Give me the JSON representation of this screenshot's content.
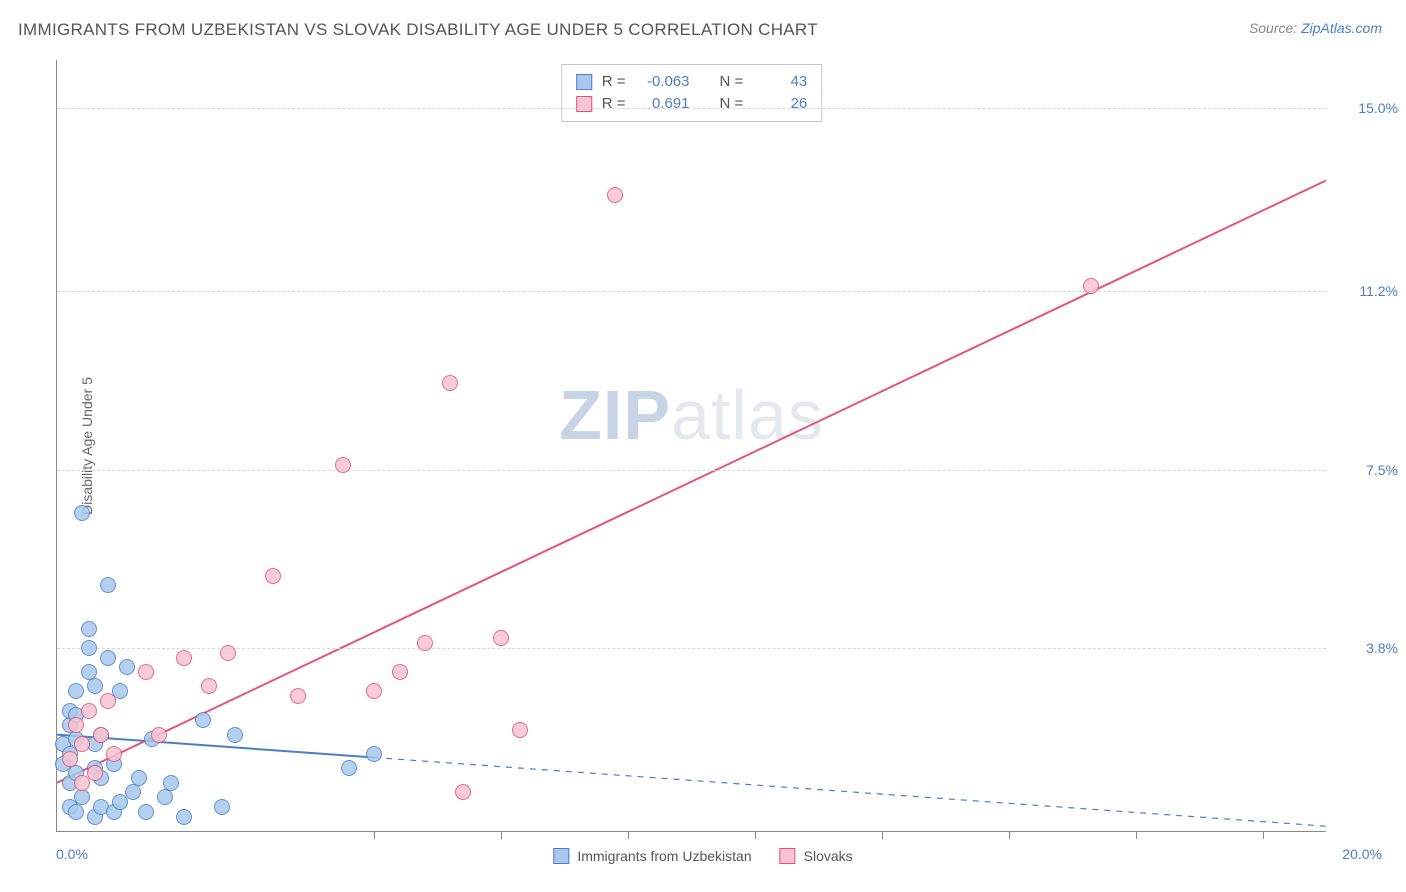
{
  "title": "IMMIGRANTS FROM UZBEKISTAN VS SLOVAK DISABILITY AGE UNDER 5 CORRELATION CHART",
  "source_prefix": "Source: ",
  "source_link": "ZipAtlas.com",
  "y_axis_label": "Disability Age Under 5",
  "x_origin": "0.0%",
  "x_max": "20.0%",
  "watermark_a": "ZIP",
  "watermark_b": "atlas",
  "chart": {
    "type": "scatter",
    "background_color": "#ffffff",
    "grid_color": "#d8d8d8",
    "axis_color": "#888888",
    "xlim": [
      0,
      20
    ],
    "ylim": [
      0,
      16
    ],
    "y_ticks": [
      {
        "v": 3.8,
        "label": "3.8%"
      },
      {
        "v": 7.5,
        "label": "7.5%"
      },
      {
        "v": 11.2,
        "label": "11.2%"
      },
      {
        "v": 15.0,
        "label": "15.0%"
      }
    ],
    "x_tick_values": [
      5,
      7,
      9,
      11,
      13,
      15,
      17,
      19
    ],
    "point_radius": 8,
    "series": [
      {
        "name": "Immigrants from Uzbekistan",
        "fill": "#a9c8ec",
        "stroke": "#4a7fc8",
        "R": "-0.063",
        "N": "43",
        "trend": {
          "x1": 0,
          "y1": 2.0,
          "x2": 20,
          "y2": 0.1,
          "solid_until_x": 5.0,
          "color": "#4a7fc8",
          "width": 2
        },
        "points": [
          [
            0.1,
            1.4
          ],
          [
            0.1,
            1.8
          ],
          [
            0.2,
            0.5
          ],
          [
            0.2,
            1.0
          ],
          [
            0.2,
            1.6
          ],
          [
            0.2,
            2.2
          ],
          [
            0.2,
            2.5
          ],
          [
            0.3,
            0.4
          ],
          [
            0.3,
            1.2
          ],
          [
            0.3,
            1.9
          ],
          [
            0.3,
            2.4
          ],
          [
            0.3,
            2.9
          ],
          [
            0.4,
            6.6
          ],
          [
            0.4,
            0.7
          ],
          [
            0.5,
            3.8
          ],
          [
            0.5,
            3.3
          ],
          [
            0.5,
            4.2
          ],
          [
            0.6,
            0.3
          ],
          [
            0.6,
            1.3
          ],
          [
            0.6,
            1.8
          ],
          [
            0.6,
            3.0
          ],
          [
            0.7,
            0.5
          ],
          [
            0.7,
            1.1
          ],
          [
            0.7,
            2.0
          ],
          [
            0.8,
            5.1
          ],
          [
            0.8,
            3.6
          ],
          [
            0.9,
            0.4
          ],
          [
            0.9,
            1.4
          ],
          [
            1.0,
            2.9
          ],
          [
            1.0,
            0.6
          ],
          [
            1.1,
            3.4
          ],
          [
            1.2,
            0.8
          ],
          [
            1.3,
            1.1
          ],
          [
            1.4,
            0.4
          ],
          [
            1.5,
            1.9
          ],
          [
            1.7,
            0.7
          ],
          [
            1.8,
            1.0
          ],
          [
            2.0,
            0.3
          ],
          [
            2.3,
            2.3
          ],
          [
            2.6,
            0.5
          ],
          [
            2.8,
            2.0
          ],
          [
            4.6,
            1.3
          ],
          [
            5.0,
            1.6
          ]
        ]
      },
      {
        "name": "Slovaks",
        "fill": "#f6c4d2",
        "stroke": "#e6537a",
        "R": "0.691",
        "N": "26",
        "trend": {
          "x1": 0,
          "y1": 1.0,
          "x2": 20,
          "y2": 13.5,
          "solid_until_x": 20,
          "color": "#e6537a",
          "width": 2
        },
        "points": [
          [
            0.2,
            1.5
          ],
          [
            0.3,
            2.2
          ],
          [
            0.4,
            1.0
          ],
          [
            0.4,
            1.8
          ],
          [
            0.5,
            2.5
          ],
          [
            0.6,
            1.2
          ],
          [
            0.7,
            2.0
          ],
          [
            0.8,
            2.7
          ],
          [
            0.9,
            1.6
          ],
          [
            1.4,
            3.3
          ],
          [
            1.6,
            2.0
          ],
          [
            2.0,
            3.6
          ],
          [
            2.4,
            3.0
          ],
          [
            2.7,
            3.7
          ],
          [
            3.4,
            5.3
          ],
          [
            3.8,
            2.8
          ],
          [
            4.5,
            7.6
          ],
          [
            5.0,
            2.9
          ],
          [
            5.4,
            3.3
          ],
          [
            5.8,
            3.9
          ],
          [
            6.2,
            9.3
          ],
          [
            6.4,
            0.8
          ],
          [
            7.0,
            4.0
          ],
          [
            7.3,
            2.1
          ],
          [
            8.8,
            13.2
          ],
          [
            16.3,
            11.3
          ]
        ]
      }
    ],
    "legend_stats_labels": {
      "R": "R =",
      "N": "N ="
    }
  },
  "bottom_legend": [
    {
      "label": "Immigrants from Uzbekistan",
      "fill": "#a9c8ec",
      "stroke": "#4a7fc8"
    },
    {
      "label": "Slovaks",
      "fill": "#f6c4d2",
      "stroke": "#e6537a"
    }
  ]
}
